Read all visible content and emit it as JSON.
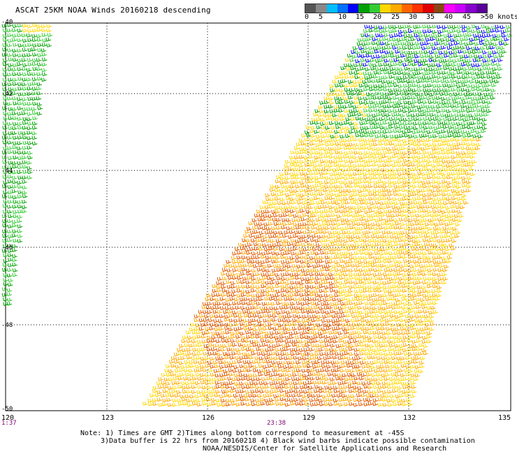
{
  "title": "ASCAT 25KM NOAA Winds 20160218 descending",
  "colorbar": {
    "colors": [
      "#555555",
      "#888888",
      "#00bfff",
      "#0070ff",
      "#0000ff",
      "#00a000",
      "#33cc33",
      "#ffd700",
      "#ffaa00",
      "#ff6600",
      "#ff3300",
      "#e00000",
      "#8b4513",
      "#ff00ff",
      "#cc00ff",
      "#8800cc",
      "#5a0099"
    ],
    "labels": [
      "0",
      "5",
      "10",
      "15",
      "20",
      "25",
      "30",
      "35",
      "40",
      "45",
      ">50 knots"
    ]
  },
  "axes": {
    "lon_labels": [
      "120",
      "123",
      "126",
      "129",
      "132",
      "135"
    ],
    "lat_labels": [
      "-40",
      "-42",
      "-44",
      "-46",
      "-48",
      "-50"
    ]
  },
  "times": [
    "1:37",
    "23:38"
  ],
  "notes": [
    "Note: 1) Times are GMT 2)Times along bottom correspond to measurement at -45S",
    "3)Data buffer is 22 hrs from 20160218 4) Black wind barbs indicate possible contamination",
    "NOAA/NESDIS/Center for Satellite Applications and Research"
  ],
  "legend_colors": {
    "light": "#33cc33",
    "moderate": "#00a000",
    "fresh": "#ffd700",
    "strong": "#ffaa00",
    "gale": "#e05a00",
    "calm_blue": "#0000ff"
  }
}
